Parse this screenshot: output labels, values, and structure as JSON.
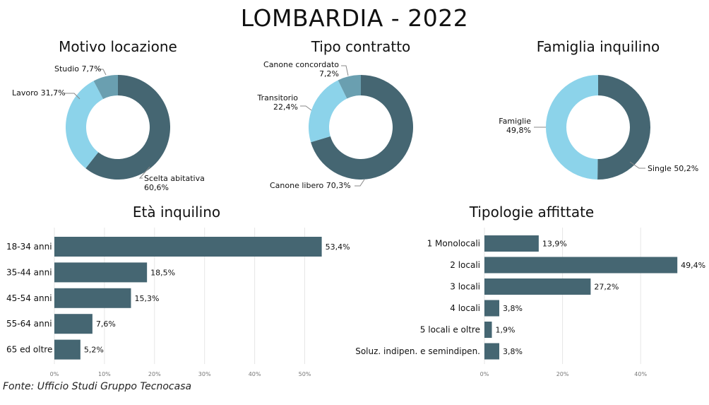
{
  "title": "LOMBARDIA - 2022",
  "source": "Fonte: Ufficio Studi Gruppo Tecnocasa",
  "colors": {
    "dark": "#456672",
    "light": "#8CD3EA",
    "mid": "#6A9FB0",
    "grid": "#e6e6e6",
    "leader": "#888888"
  },
  "chart_data": [
    {
      "type": "pie",
      "title": "Motivo locazione",
      "slices": [
        {
          "label": "Scelta abitativa",
          "value": "60,6%",
          "pct": 60.6,
          "color": "#456672"
        },
        {
          "label": "Lavoro",
          "value": "31,7%",
          "pct": 31.7,
          "color": "#8CD3EA"
        },
        {
          "label": "Studio",
          "value": "7,7%",
          "pct": 7.7,
          "color": "#6A9FB0"
        }
      ]
    },
    {
      "type": "pie",
      "title": "Tipo contratto",
      "slices": [
        {
          "label": "Canone libero",
          "value": "70,3%",
          "pct": 70.3,
          "color": "#456672"
        },
        {
          "label": "Transitorio",
          "value": "22,4%",
          "pct": 22.4,
          "color": "#8CD3EA"
        },
        {
          "label": "Canone concordato",
          "value": "7,2%",
          "pct": 7.2,
          "color": "#6A9FB0"
        }
      ]
    },
    {
      "type": "pie",
      "title": "Famiglia inquilino",
      "slices": [
        {
          "label": "Single",
          "value": "50,2%",
          "pct": 50.2,
          "color": "#456672"
        },
        {
          "label": "Famiglie",
          "value": "49,8%",
          "pct": 49.8,
          "color": "#8CD3EA"
        }
      ]
    },
    {
      "type": "bar",
      "title": "Età inquilino",
      "categories": [
        "18-34 anni",
        "35-44 anni",
        "45-54 anni",
        "55-64 anni",
        "65 ed oltre"
      ],
      "values": [
        53.4,
        18.5,
        15.3,
        7.6,
        5.2
      ],
      "value_labels": [
        "53,4%",
        "18,5%",
        "15,3%",
        "7,6%",
        "5,2%"
      ],
      "xticks": [
        "0%",
        "10%",
        "20%",
        "30%",
        "40%",
        "50%"
      ],
      "xlim": [
        0,
        57
      ]
    },
    {
      "type": "bar",
      "title": "Tipologie affittate",
      "categories": [
        "1 Monolocali",
        "2 locali",
        "3 locali",
        "4 locali",
        "5 locali e oltre",
        "Soluz. indipen. e semindipen."
      ],
      "values": [
        13.9,
        49.4,
        27.2,
        3.8,
        1.9,
        3.8
      ],
      "value_labels": [
        "13,9%",
        "49,4%",
        "27,2%",
        "3,8%",
        "1,9%",
        "3,8%"
      ],
      "xticks": [
        "0%",
        "20%",
        "40%"
      ],
      "xlim": [
        0,
        51
      ]
    }
  ]
}
